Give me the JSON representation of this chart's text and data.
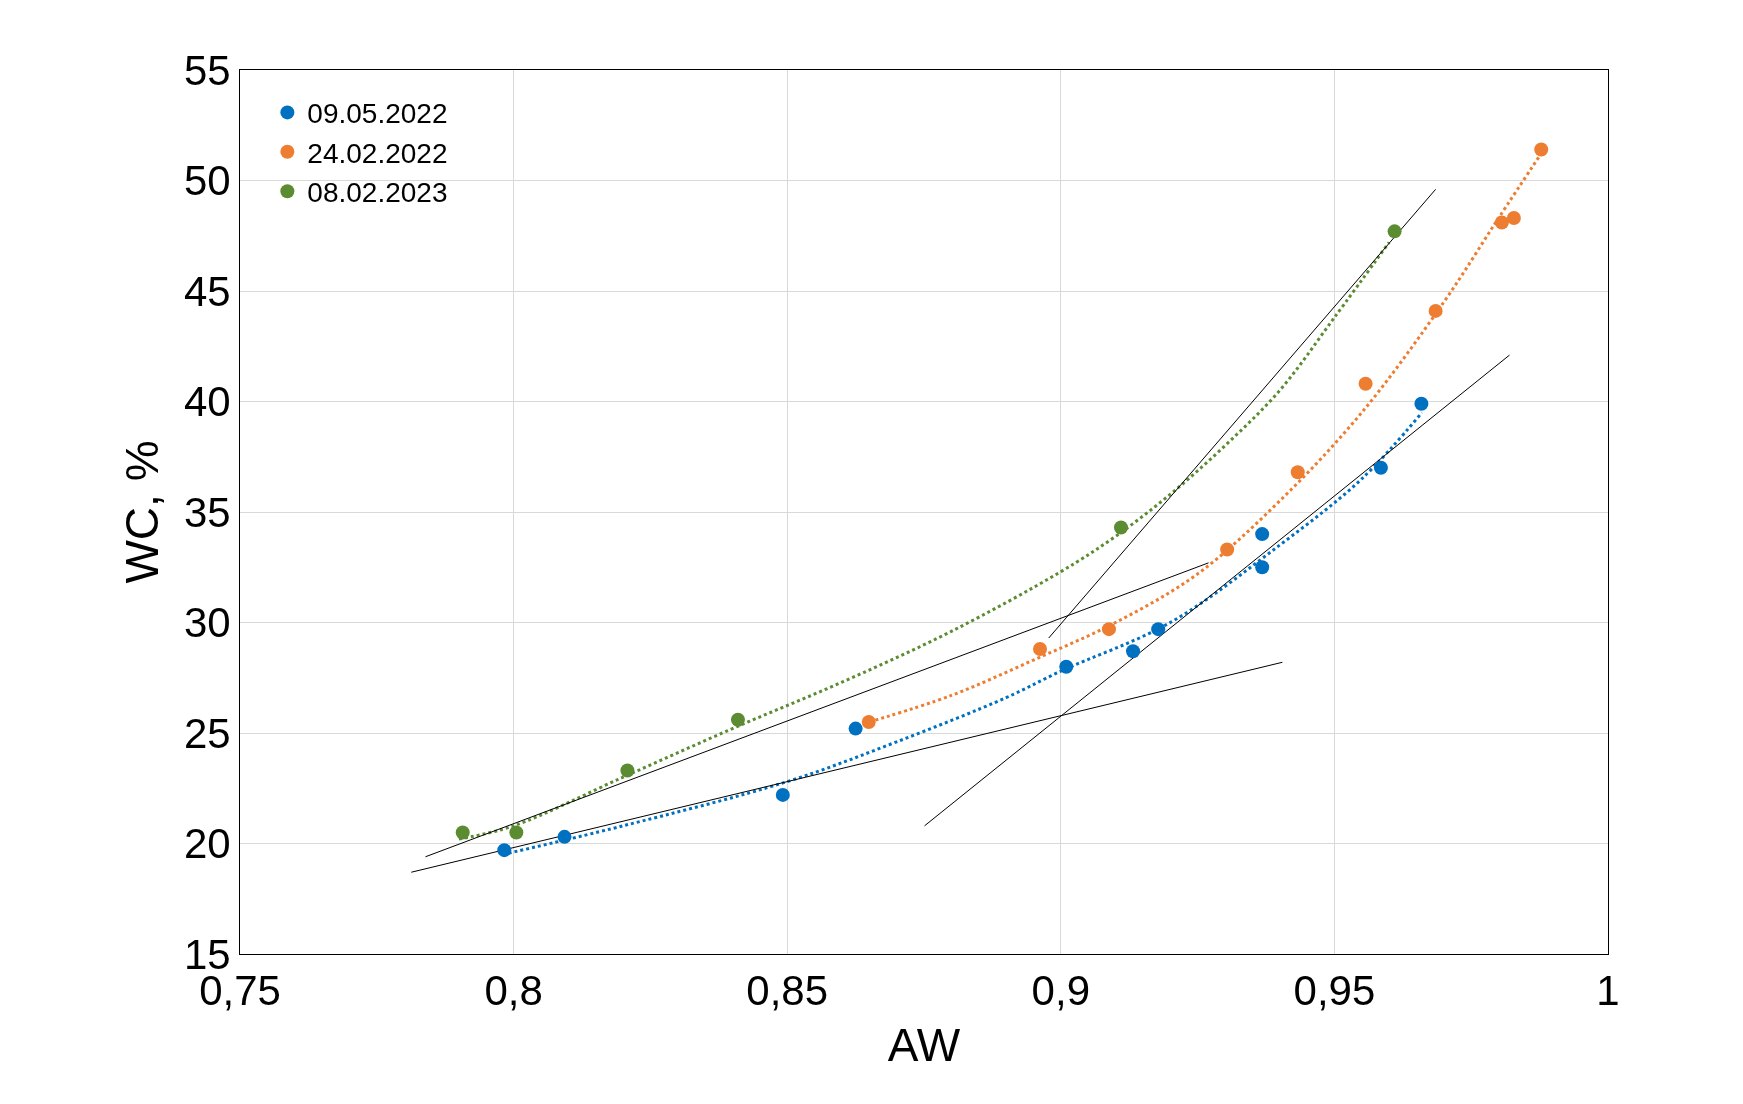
{
  "chart_data": {
    "type": "scatter",
    "xlabel": "AW",
    "ylabel": "WC, %",
    "xlim": [
      0.75,
      1
    ],
    "ylim": [
      15,
      55
    ],
    "xticks": [
      {
        "value": 0.75,
        "label": "0,75"
      },
      {
        "value": 0.8,
        "label": "0,8"
      },
      {
        "value": 0.85,
        "label": "0,85"
      },
      {
        "value": 0.9,
        "label": "0,9"
      },
      {
        "value": 0.95,
        "label": "0,95"
      },
      1
    ],
    "yticks": [
      15,
      20,
      25,
      30,
      35,
      40,
      45,
      50,
      55
    ],
    "grid": true,
    "legend": "top left",
    "series": [
      {
        "name": "09.05.2022",
        "marker": "circle",
        "color": "#0070c0",
        "x": [
          0.7983,
          0.8093,
          0.8492,
          0.8625,
          0.901,
          0.9132,
          0.9178,
          0.9368,
          0.9368,
          0.9585,
          0.9659
        ],
        "values": [
          19.7,
          20.3,
          22.2,
          25.2,
          28.0,
          28.7,
          29.7,
          34.0,
          32.5,
          37.0,
          39.9
        ]
      },
      {
        "name": "24.02.2022",
        "marker": "circle",
        "color": "#ed7d31",
        "x": [
          0.8649,
          0.8962,
          0.9088,
          0.9304,
          0.9433,
          0.9557,
          0.9685,
          0.9806,
          0.9828,
          0.9878
        ],
        "values": [
          25.5,
          28.8,
          29.7,
          33.3,
          36.8,
          40.8,
          44.1,
          48.1,
          48.3,
          51.4
        ]
      },
      {
        "name": "08.02.2023",
        "marker": "circle",
        "color": "#5b8c32",
        "x": [
          0.7907,
          0.8005,
          0.8208,
          0.841,
          0.911,
          0.961
        ],
        "values": [
          20.5,
          20.5,
          23.3,
          25.6,
          34.3,
          47.7
        ]
      },
      {
        "type": "line",
        "color": "#0070c0",
        "line_style": "dotted",
        "x": [
          0.798,
          0.82,
          0.85,
          0.87,
          0.89,
          0.9,
          0.92,
          0.94,
          0.955,
          0.966
        ],
        "values": [
          19.5,
          20.8,
          22.8,
          24.6,
          26.6,
          27.8,
          30.0,
          33.5,
          36.5,
          39.5
        ]
      },
      {
        "type": "line",
        "color": "#ed7d31",
        "line_style": "dotted",
        "x": [
          0.865,
          0.88,
          0.895,
          0.91,
          0.925,
          0.94,
          0.955,
          0.97,
          0.98,
          0.988
        ],
        "values": [
          25.5,
          26.7,
          28.3,
          30.0,
          32.2,
          35.5,
          39.5,
          44.5,
          48.3,
          51.3
        ]
      },
      {
        "type": "line",
        "color": "#5b8c32",
        "line_style": "dotted",
        "x": [
          0.79,
          0.8,
          0.82,
          0.84,
          0.86,
          0.88,
          0.9,
          0.91,
          0.92,
          0.93,
          0.94,
          0.95,
          0.96
        ],
        "values": [
          20.2,
          20.8,
          23.0,
          25.2,
          27.3,
          29.6,
          32.3,
          33.9,
          35.8,
          38.0,
          40.5,
          43.8,
          47.2
        ]
      },
      {
        "type": "line",
        "color": "#000000",
        "line_style": "solid",
        "x": [
          0.7839,
          0.927
        ],
        "values": [
          19.4,
          32.7
        ]
      },
      {
        "type": "line",
        "color": "#000000",
        "line_style": "solid",
        "x": [
          0.7813,
          0.9405
        ],
        "values": [
          18.7,
          28.2
        ]
      },
      {
        "type": "line",
        "color": "#000000",
        "line_style": "solid",
        "x": [
          0.8751,
          0.982
        ],
        "values": [
          20.8,
          42.1
        ]
      },
      {
        "type": "line",
        "color": "#000000",
        "line_style": "solid",
        "x": [
          0.8978,
          0.9685
        ],
        "values": [
          29.3,
          49.6
        ]
      }
    ]
  }
}
